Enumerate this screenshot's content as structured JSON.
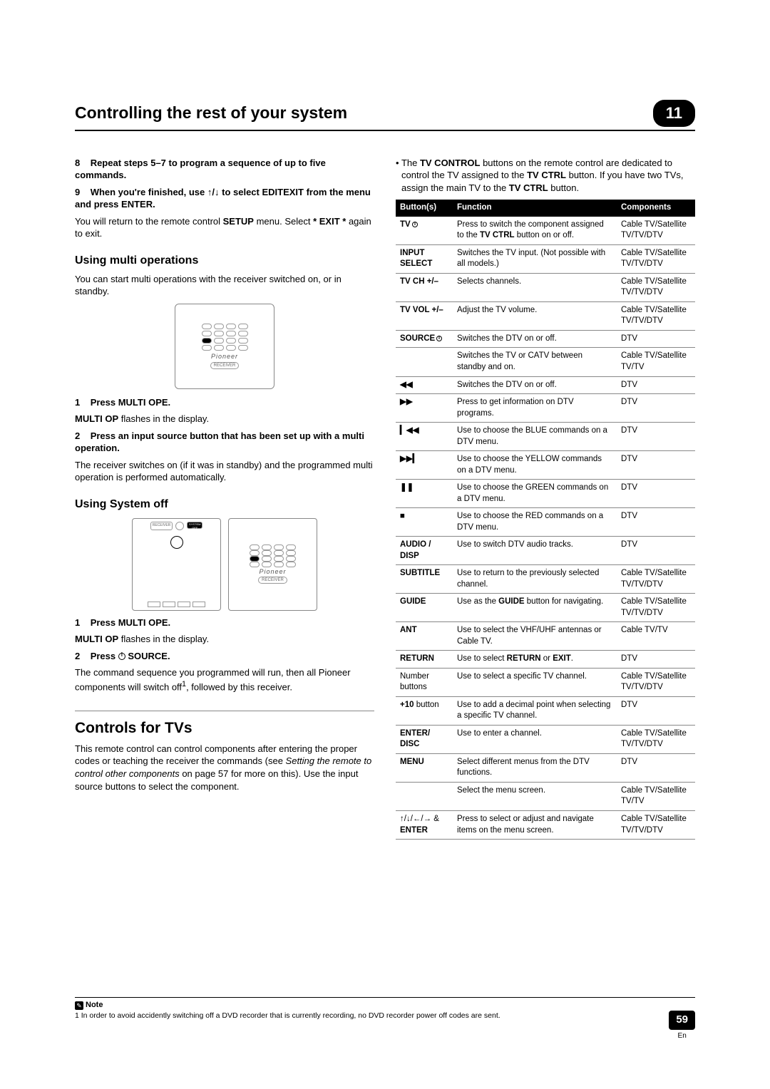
{
  "header": {
    "title": "Controlling the rest of your system",
    "chapter": "11"
  },
  "left": {
    "step8": {
      "num": "8",
      "text": "Repeat steps 5–7 to program a sequence of up to five commands."
    },
    "step9": {
      "num": "9",
      "text_a": "When you're finished, use ",
      "text_b": " to select EDITEXIT from the menu and press ENTER."
    },
    "p1a": "You will return to the remote control ",
    "p1b": "SETUP",
    "p1c": " menu. Select ",
    "p1d": "* EXIT *",
    "p1e": " again to exit.",
    "h_multi": "Using multi operations",
    "p2": "You can start multi operations with the receiver switched on, or in standby.",
    "s1": {
      "num": "1",
      "text": "Press MULTI OPE."
    },
    "s1_body_a": "MULTI OP",
    "s1_body_b": " flashes in the display.",
    "s2": {
      "num": "2",
      "text": "Press an input source button that has been set up with a multi operation."
    },
    "s2_body": "The receiver switches on (if it was in standby) and the programmed multi operation is performed automatically.",
    "h_sysoff": "Using System off",
    "so1": {
      "num": "1",
      "text": "Press MULTI OPE."
    },
    "so1_body_a": "MULTI OP",
    "so1_body_b": " flashes in the display.",
    "so2": {
      "num": "2",
      "text_a": "Press ",
      "text_b": " SOURCE."
    },
    "so2_body_a": "The command sequence you programmed will run, then all Pioneer components will switch off",
    "so2_body_b": ", followed by this receiver.",
    "h_tvs": "Controls for TVs",
    "tvs_body_a": "This remote control can control components after entering the proper codes or teaching the receiver the commands (see ",
    "tvs_body_b": "Setting the remote to control other components",
    "tvs_body_c": " on page 57 for more on this). Use the input source buttons to select the component."
  },
  "right": {
    "intro_a": "The ",
    "intro_b": "TV CONTROL",
    "intro_c": " buttons on the remote control are dedicated to control the TV assigned to the ",
    "intro_d": "TV CTRL",
    "intro_e": " button. If you have two TVs, assign the main TV to the ",
    "intro_f": "TV CTRL",
    "intro_g": " button.",
    "th1": "Button(s)",
    "th2": "Function",
    "th3": "Components",
    "rows": [
      {
        "b": "TV",
        "pwr": true,
        "f": "Press to switch the component assigned to the TV CTRL button on or off.",
        "fbold": "TV CTRL",
        "c": "Cable TV/Satellite TV/TV/DTV"
      },
      {
        "b": "INPUT SELECT",
        "f": "Switches the TV input. (Not possible with all models.)",
        "c": "Cable TV/Satellite TV/TV/DTV"
      },
      {
        "b": "TV CH +/–",
        "f": "Selects channels.",
        "c": "Cable TV/Satellite TV/TV/DTV"
      },
      {
        "b": "TV VOL +/–",
        "f": "Adjust the TV volume.",
        "c": "Cable TV/Satellite TV/TV/DTV"
      },
      {
        "b": "SOURCE",
        "pwr": true,
        "f": "Switches the DTV on or off.",
        "c": "DTV"
      },
      {
        "b": "",
        "f": "Switches the TV or CATV between standby and on.",
        "c": "Cable TV/Satellite TV/TV"
      },
      {
        "b": "◀◀",
        "sym": true,
        "f": "Switches the DTV on or off.",
        "c": "DTV"
      },
      {
        "b": "▶▶",
        "sym": true,
        "f": "Press to get information on DTV programs.",
        "c": "DTV"
      },
      {
        "b": "▎◀◀",
        "sym": true,
        "f": "Use to choose the BLUE commands on a DTV menu.",
        "c": "DTV"
      },
      {
        "b": "▶▶▎",
        "sym": true,
        "f": "Use to choose the YELLOW commands on a DTV menu.",
        "c": "DTV"
      },
      {
        "b": "❚❚",
        "sym": true,
        "f": "Use to choose the GREEN commands on a DTV menu.",
        "c": "DTV"
      },
      {
        "b": "■",
        "sym": true,
        "f": "Use to choose the RED commands on a DTV menu.",
        "c": "DTV"
      },
      {
        "b": "AUDIO / DISP",
        "f": "Use to switch DTV audio tracks.",
        "c": "DTV"
      },
      {
        "b": "SUBTITLE",
        "f": "Use to return to the previously selected channel.",
        "c": "Cable TV/Satellite TV/TV/DTV"
      },
      {
        "b": "GUIDE",
        "f": "Use as the GUIDE button for navigating.",
        "fbold": "GUIDE",
        "c": "Cable TV/Satellite TV/TV/DTV"
      },
      {
        "b": "ANT",
        "f": "Use to select the VHF/UHF antennas or Cable TV.",
        "c": "Cable TV/TV"
      },
      {
        "b": "RETURN",
        "f": "Use to select RETURN or EXIT.",
        "fbold2": [
          "RETURN",
          "EXIT"
        ],
        "c": "DTV"
      },
      {
        "b": "Number buttons",
        "nw": true,
        "f": "Use to select a specific TV channel.",
        "c": "Cable TV/Satellite TV/TV/DTV"
      },
      {
        "b": "+10 button",
        "nw": true,
        "bbold": "+10",
        "f": "Use to add a decimal point when selecting a specific TV channel.",
        "c": "DTV"
      },
      {
        "b": "ENTER/ DISC",
        "f": "Use to enter a channel.",
        "c": "Cable TV/Satellite TV/TV/DTV"
      },
      {
        "b": "MENU",
        "f": "Select different menus from the DTV functions.",
        "c": "DTV"
      },
      {
        "b": "",
        "f": "Select the menu screen.",
        "c": "Cable TV/Satellite TV/TV"
      },
      {
        "b": "↑/↓/←/→ & ENTER",
        "nw": true,
        "bbold": "ENTER",
        "f": "Press to select or adjust and navigate items on the menu screen.",
        "c": "Cable TV/Satellite TV/TV/DTV"
      }
    ]
  },
  "footnote": {
    "label": "Note",
    "text": "1 In order to avoid accidently switching off a DVD recorder that is currently recording, no DVD recorder power off codes are sent."
  },
  "page": {
    "num": "59",
    "lang": "En"
  }
}
